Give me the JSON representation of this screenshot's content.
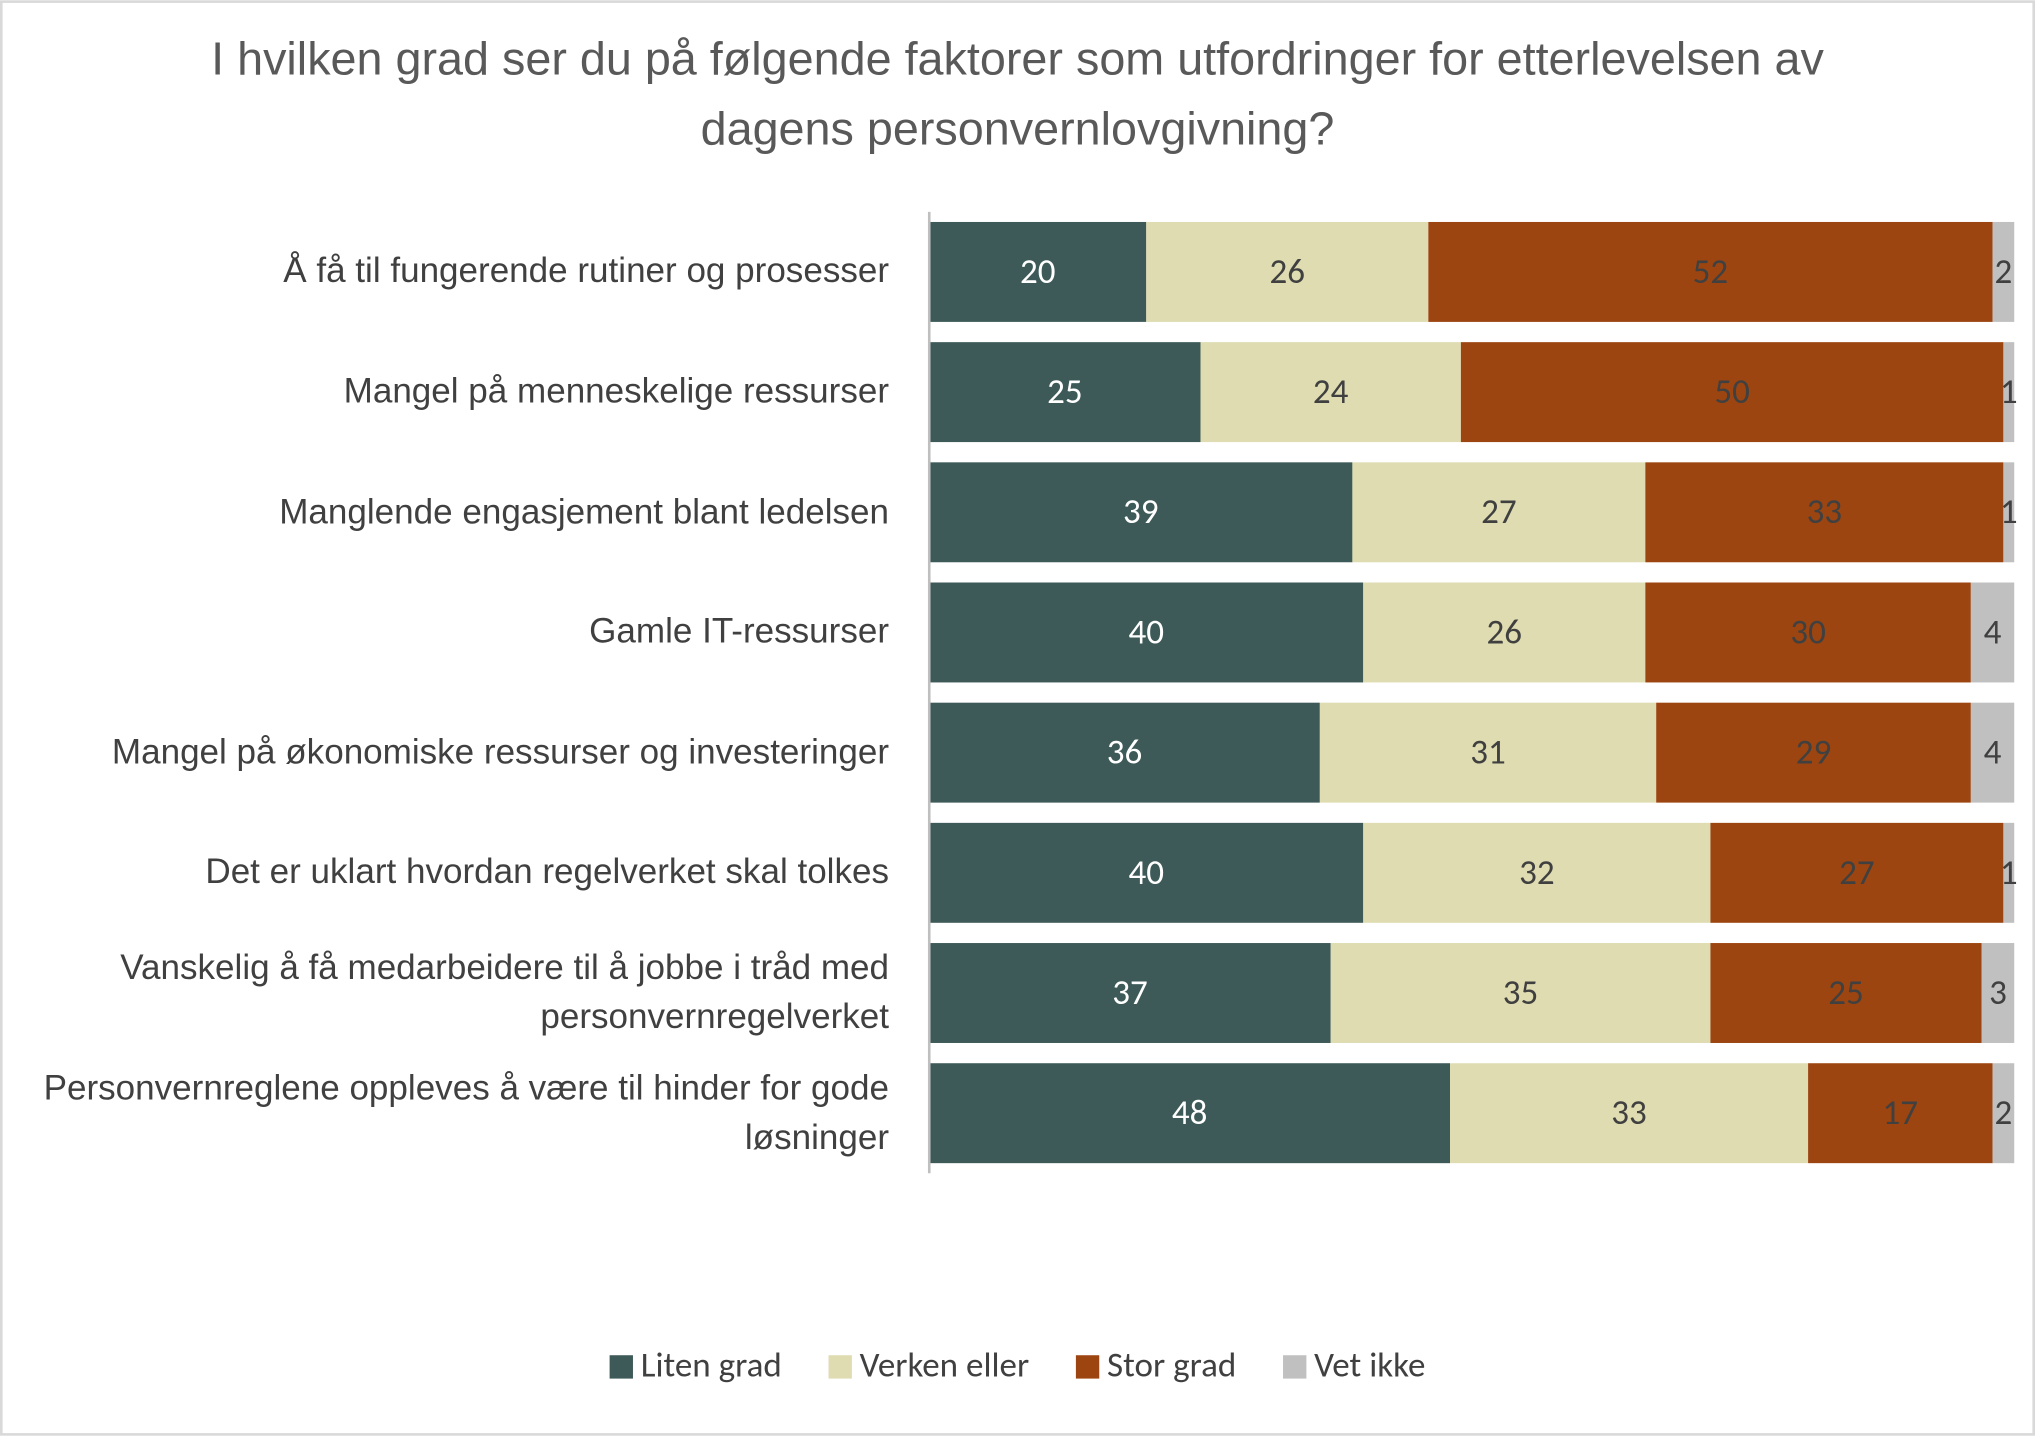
{
  "chart_data": {
    "type": "stacked_barh",
    "title": "I hvilken grad ser du på følgende faktorer som utfordringer for etterlevelsen av dagens personvernlovgivning?",
    "categories": [
      "Å få til fungerende rutiner og prosesser",
      "Mangel på menneskelige ressurser",
      "Manglende engasjement blant ledelsen",
      "Gamle IT-ressurser",
      "Mangel på økonomiske ressurser og investeringer",
      "Det er uklart hvordan regelverket skal tolkes",
      "Vanskelig å få medarbeidere til å jobbe i tråd med personvernregelverket",
      "Personvernreglene oppleves å være til hinder for gode løsninger"
    ],
    "series": [
      {
        "name": "Liten grad",
        "color": "#3d5a58",
        "values": [
          20,
          25,
          39,
          40,
          36,
          40,
          37,
          48
        ]
      },
      {
        "name": "Verken eller",
        "color": "#dedcb0",
        "values": [
          26,
          24,
          27,
          26,
          31,
          32,
          35,
          33
        ]
      },
      {
        "name": "Stor grad",
        "color": "#9c4510",
        "values": [
          52,
          50,
          33,
          30,
          29,
          27,
          25,
          17
        ]
      },
      {
        "name": "Vet ikke",
        "color": "#c0c0c0",
        "values": [
          2,
          1,
          1,
          4,
          4,
          1,
          3,
          2
        ]
      }
    ],
    "xlim": [
      0,
      100
    ],
    "legend": "bottom"
  }
}
